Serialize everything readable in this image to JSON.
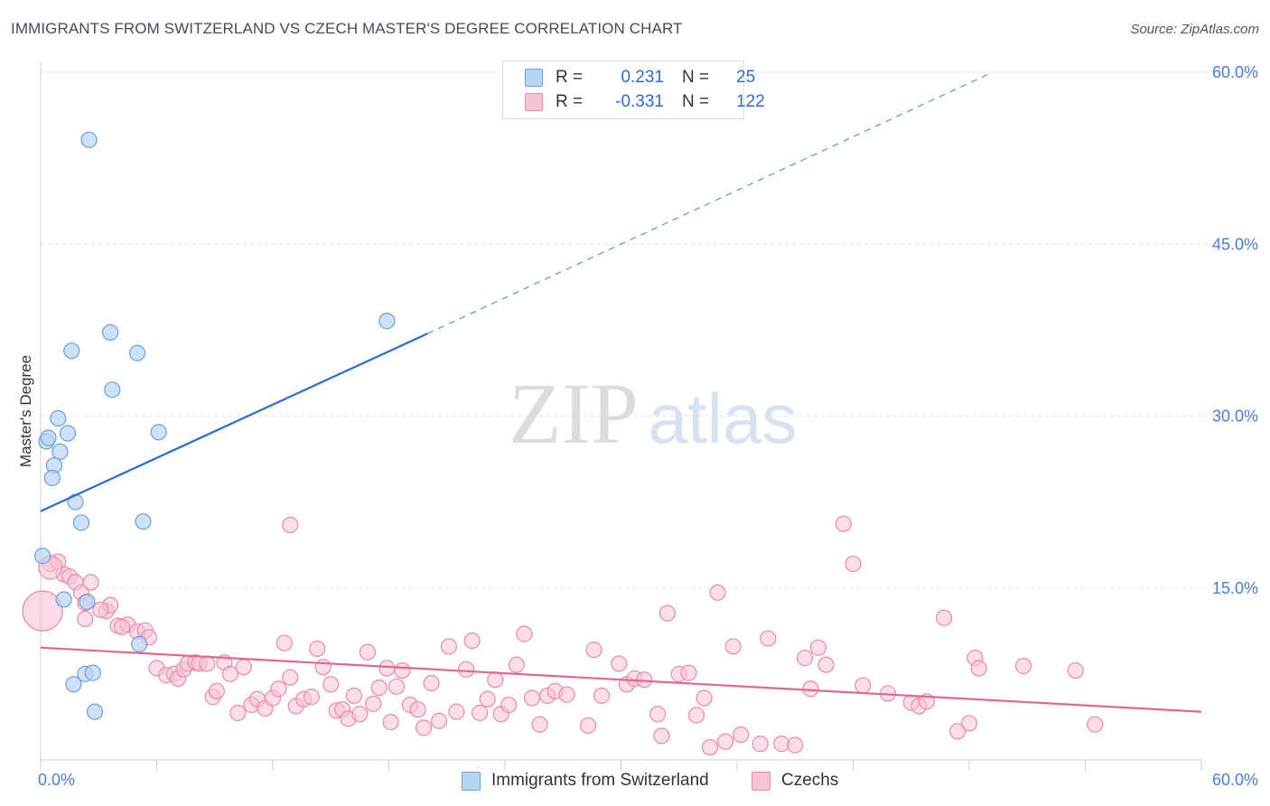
{
  "title": "IMMIGRANTS FROM SWITZERLAND VS CZECH MASTER'S DEGREE CORRELATION CHART",
  "source": "Source: ZipAtlas.com",
  "watermark": {
    "zip": "ZIP",
    "atlas": "atlas"
  },
  "legend": {
    "rows": [
      {
        "r_label": "R =",
        "r_value": "0.231",
        "n_label": "N =",
        "n_value": "25"
      },
      {
        "r_label": "R =",
        "r_value": "-0.331",
        "n_label": "N =",
        "n_value": "122"
      }
    ]
  },
  "bottom_legend": {
    "blue": "Immigrants from Switzerland",
    "pink": "Czechs"
  },
  "colors": {
    "blue_fill": "#b8d4f4",
    "blue_stroke": "#6d9fd9",
    "blue_line": "#2a6cc9",
    "pink_fill": "#f7c3d3",
    "pink_stroke": "#e98aa8",
    "pink_line": "#e0678f",
    "tick_text": "#4a7fd0"
  },
  "chart_data": {
    "type": "scatter",
    "title": "IMMIGRANTS FROM SWITZERLAND VS CZECH MASTER'S DEGREE CORRELATION CHART",
    "ylabel": "Master's Degree",
    "xlabel": "",
    "xlim": [
      0,
      60
    ],
    "ylim": [
      0,
      60
    ],
    "x_tick_labels": {
      "left": "0.0%",
      "right": "60.0%"
    },
    "y_tick_labels": [
      "15.0%",
      "30.0%",
      "45.0%",
      "60.0%"
    ],
    "y_tick_values": [
      15,
      30,
      45,
      60
    ],
    "series": [
      {
        "name": "Immigrants from Switzerland",
        "color": "blue",
        "R": 0.231,
        "N": 25,
        "trend": {
          "x0": 0,
          "y0": 21.7,
          "x1": 20,
          "y1": 37.2,
          "dashed_to_x": 49.2,
          "dashed_to_y": 60
        },
        "points": [
          [
            2.5,
            54.1
          ],
          [
            1.6,
            35.7
          ],
          [
            3.6,
            37.3
          ],
          [
            5.0,
            35.5
          ],
          [
            3.7,
            32.3
          ],
          [
            6.1,
            28.6
          ],
          [
            0.9,
            29.8
          ],
          [
            1.4,
            28.5
          ],
          [
            0.3,
            27.8
          ],
          [
            0.4,
            28.1
          ],
          [
            1.0,
            26.9
          ],
          [
            0.7,
            25.7
          ],
          [
            0.6,
            24.6
          ],
          [
            1.8,
            22.5
          ],
          [
            2.1,
            20.7
          ],
          [
            5.3,
            20.8
          ],
          [
            0.1,
            17.8
          ],
          [
            1.2,
            14.0
          ],
          [
            2.4,
            13.8
          ],
          [
            5.1,
            10.1
          ],
          [
            2.3,
            7.5
          ],
          [
            2.7,
            7.6
          ],
          [
            1.7,
            6.6
          ],
          [
            2.8,
            4.2
          ],
          [
            17.9,
            38.3
          ]
        ]
      },
      {
        "name": "Czechs",
        "color": "pink",
        "R": -0.331,
        "N": 122,
        "trend": {
          "x0": 0,
          "y0": 9.8,
          "x1": 60,
          "y1": 4.2
        },
        "points": [
          [
            0.5,
            17.1
          ],
          [
            0.9,
            17.3
          ],
          [
            1.2,
            16.2
          ],
          [
            1.5,
            16.0
          ],
          [
            1.8,
            15.5
          ],
          [
            2.1,
            14.6
          ],
          [
            2.6,
            15.5
          ],
          [
            2.3,
            13.7
          ],
          [
            3.4,
            13.0
          ],
          [
            3.6,
            13.5
          ],
          [
            2.3,
            12.3
          ],
          [
            3.1,
            13.1
          ],
          [
            4.0,
            11.7
          ],
          [
            4.5,
            11.8
          ],
          [
            5.0,
            11.2
          ],
          [
            5.4,
            11.3
          ],
          [
            5.6,
            10.7
          ],
          [
            4.2,
            11.6
          ],
          [
            6.0,
            8.0
          ],
          [
            6.5,
            7.4
          ],
          [
            6.9,
            7.5
          ],
          [
            7.1,
            7.1
          ],
          [
            7.4,
            7.9
          ],
          [
            7.6,
            8.4
          ],
          [
            8.0,
            8.5
          ],
          [
            8.2,
            8.4
          ],
          [
            8.6,
            8.4
          ],
          [
            8.9,
            5.5
          ],
          [
            9.1,
            6.0
          ],
          [
            9.5,
            8.5
          ],
          [
            9.8,
            7.5
          ],
          [
            10.2,
            4.1
          ],
          [
            10.5,
            8.1
          ],
          [
            10.9,
            4.8
          ],
          [
            11.2,
            5.3
          ],
          [
            11.6,
            4.5
          ],
          [
            12.0,
            5.4
          ],
          [
            12.3,
            6.2
          ],
          [
            12.6,
            10.2
          ],
          [
            12.9,
            7.2
          ],
          [
            13.2,
            4.7
          ],
          [
            13.6,
            5.3
          ],
          [
            14.0,
            5.5
          ],
          [
            14.3,
            9.7
          ],
          [
            14.6,
            8.1
          ],
          [
            15.0,
            6.6
          ],
          [
            15.3,
            4.3
          ],
          [
            15.6,
            4.4
          ],
          [
            15.9,
            3.6
          ],
          [
            16.2,
            5.6
          ],
          [
            16.5,
            4.0
          ],
          [
            16.9,
            9.4
          ],
          [
            17.2,
            4.9
          ],
          [
            17.5,
            6.3
          ],
          [
            17.9,
            8.0
          ],
          [
            18.1,
            3.3
          ],
          [
            18.4,
            6.4
          ],
          [
            18.7,
            7.8
          ],
          [
            19.1,
            4.8
          ],
          [
            19.5,
            4.4
          ],
          [
            19.8,
            2.8
          ],
          [
            20.2,
            6.7
          ],
          [
            20.6,
            3.4
          ],
          [
            21.1,
            9.9
          ],
          [
            21.5,
            4.2
          ],
          [
            22.0,
            7.9
          ],
          [
            22.3,
            10.4
          ],
          [
            22.7,
            4.1
          ],
          [
            23.1,
            5.3
          ],
          [
            23.5,
            7.0
          ],
          [
            23.8,
            4.0
          ],
          [
            24.2,
            4.8
          ],
          [
            24.6,
            8.3
          ],
          [
            25.0,
            11.0
          ],
          [
            25.4,
            5.4
          ],
          [
            25.8,
            3.1
          ],
          [
            26.2,
            5.6
          ],
          [
            26.6,
            6.0
          ],
          [
            27.2,
            5.7
          ],
          [
            28.3,
            3.0
          ],
          [
            28.6,
            9.6
          ],
          [
            29.0,
            5.6
          ],
          [
            29.9,
            8.4
          ],
          [
            30.3,
            6.6
          ],
          [
            30.7,
            7.1
          ],
          [
            31.2,
            7.0
          ],
          [
            31.9,
            4.0
          ],
          [
            32.1,
            2.1
          ],
          [
            32.4,
            12.8
          ],
          [
            33.0,
            7.5
          ],
          [
            33.5,
            7.6
          ],
          [
            33.9,
            3.9
          ],
          [
            34.3,
            5.4
          ],
          [
            34.6,
            1.1
          ],
          [
            35.0,
            14.6
          ],
          [
            35.4,
            1.6
          ],
          [
            35.8,
            9.9
          ],
          [
            36.2,
            2.2
          ],
          [
            37.2,
            1.4
          ],
          [
            37.6,
            10.6
          ],
          [
            38.3,
            1.4
          ],
          [
            39.0,
            1.3
          ],
          [
            39.5,
            8.9
          ],
          [
            39.8,
            6.2
          ],
          [
            40.2,
            9.8
          ],
          [
            40.6,
            8.3
          ],
          [
            41.5,
            20.6
          ],
          [
            42.0,
            17.1
          ],
          [
            42.5,
            6.5
          ],
          [
            43.8,
            5.8
          ],
          [
            45.0,
            5.0
          ],
          [
            45.4,
            4.7
          ],
          [
            45.8,
            5.1
          ],
          [
            46.7,
            12.4
          ],
          [
            47.4,
            2.5
          ],
          [
            48.0,
            3.2
          ],
          [
            48.3,
            8.9
          ],
          [
            48.5,
            8.0
          ],
          [
            50.8,
            8.2
          ],
          [
            53.5,
            7.8
          ],
          [
            54.5,
            3.1
          ],
          [
            12.9,
            20.5
          ]
        ]
      }
    ]
  }
}
